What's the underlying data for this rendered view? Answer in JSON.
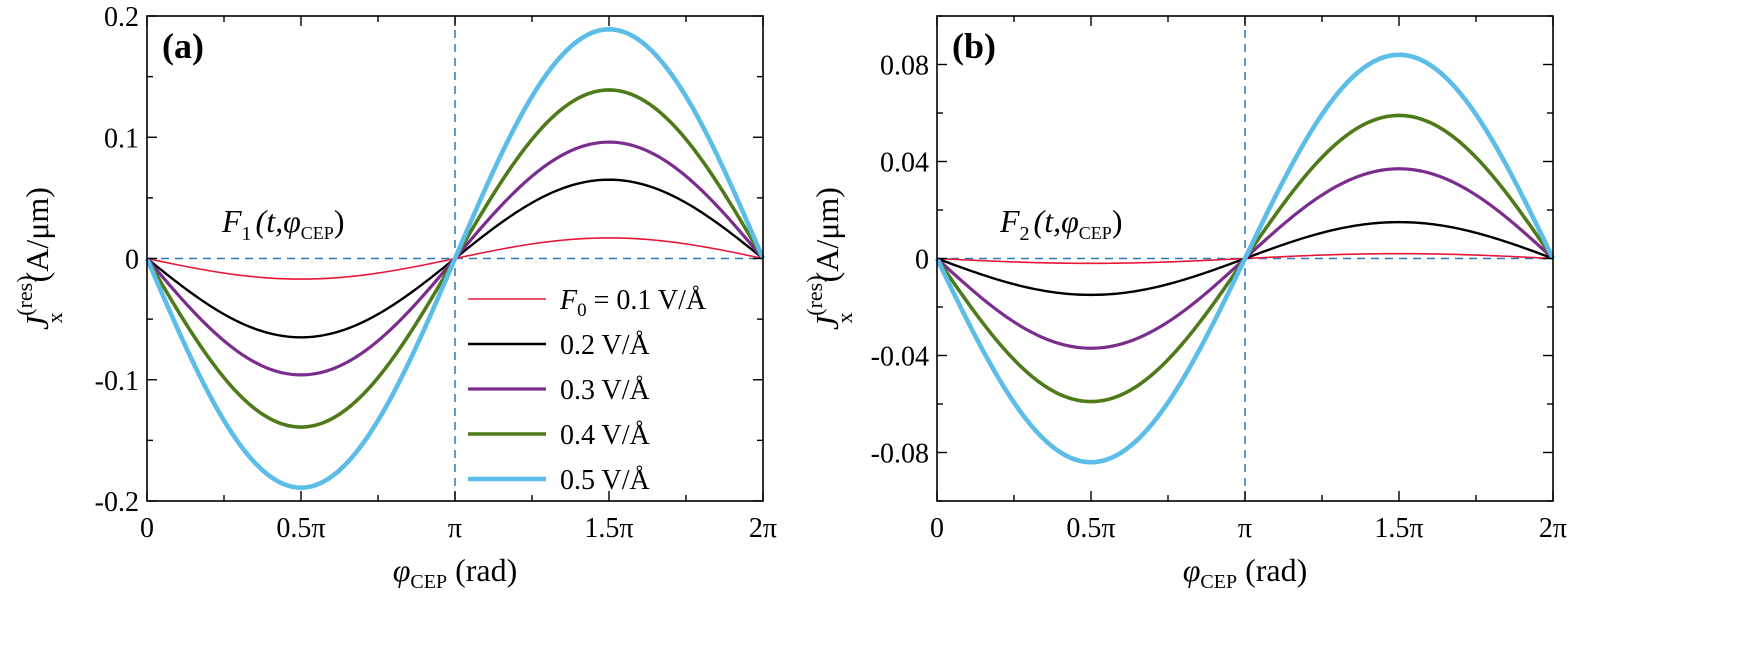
{
  "chart_data": [
    {
      "type": "line",
      "panel": "(a)",
      "panel_label": "(a)",
      "annotation": {
        "main": "F",
        "sub": "1",
        "args_pre": "(t,",
        "phi": "φ",
        "phi_sub": "CEP",
        "args_post": ")"
      },
      "ylabel": {
        "main": "J",
        "sub": "x",
        "sup": "(res)",
        "unit": "(A/μm)"
      },
      "xlabel": {
        "phi": "φ",
        "sub": "CEP",
        "unit": "(rad)"
      },
      "xlim": [
        0,
        2
      ],
      "ylim": [
        -0.2,
        0.2
      ],
      "x_ticks": [
        0,
        0.5,
        1,
        1.5,
        2
      ],
      "x_tick_labels": [
        "0",
        "0.5π",
        "π",
        "1.5π",
        "2π"
      ],
      "y_ticks": [
        -0.2,
        -0.1,
        0,
        0.1,
        0.2
      ],
      "y_tick_labels": [
        "-0.2",
        "-0.1",
        "0",
        "0.1",
        "0.2"
      ],
      "reference_lines": {
        "vertical_x": 1,
        "horizontal_y": 0
      },
      "series": [
        {
          "name": "F0 = 0.1 V/Å",
          "amplitude": 0.017,
          "color": "#e8173a"
        },
        {
          "name": "0.2 V/Å",
          "amplitude": 0.065,
          "color": "#000000"
        },
        {
          "name": "0.3 V/Å",
          "amplitude": 0.096,
          "color": "#7b2d8e"
        },
        {
          "name": "0.4 V/Å",
          "amplitude": 0.139,
          "color": "#4f7a1a"
        },
        {
          "name": "0.5 V/Å",
          "amplitude": 0.189,
          "color": "#5bbde8"
        }
      ],
      "series_model": "y = -amplitude * sin(x * π)",
      "legend": {
        "placement": "bottom-right",
        "entries": [
          {
            "label_main": "F",
            "label_sub": "0",
            "label_rest": " = 0.1 V/Å"
          },
          {
            "label_main": "0.2 V/Å",
            "label_sub": "",
            "label_rest": ""
          },
          {
            "label_main": "0.3 V/Å",
            "label_sub": "",
            "label_rest": ""
          },
          {
            "label_main": "0.4 V/Å",
            "label_sub": "",
            "label_rest": ""
          },
          {
            "label_main": "0.5 V/Å",
            "label_sub": "",
            "label_rest": ""
          }
        ]
      }
    },
    {
      "type": "line",
      "panel": "(b)",
      "panel_label": "(b)",
      "annotation": {
        "main": "F",
        "sub": "2",
        "args_pre": "(t,",
        "phi": "φ",
        "phi_sub": "CEP",
        "args_post": ")"
      },
      "ylabel": {
        "main": "J",
        "sub": "x",
        "sup": "(res)",
        "unit": "(A/μm)"
      },
      "xlabel": {
        "phi": "φ",
        "sub": "CEP",
        "unit": "(rad)"
      },
      "xlim": [
        0,
        2
      ],
      "ylim": [
        -0.1,
        0.1
      ],
      "x_ticks": [
        0,
        0.5,
        1,
        1.5,
        2
      ],
      "x_tick_labels": [
        "0",
        "0.5π",
        "π",
        "1.5π",
        "2π"
      ],
      "y_ticks": [
        -0.08,
        -0.04,
        0,
        0.04,
        0.08
      ],
      "y_tick_labels": [
        "-0.08",
        "-0.04",
        "0",
        "0.04",
        "0.08"
      ],
      "reference_lines": {
        "vertical_x": 1,
        "horizontal_y": 0
      },
      "series": [
        {
          "name": "F0 = 0.1 V/Å",
          "amplitude": 0.002,
          "color": "#e8173a"
        },
        {
          "name": "0.2 V/Å",
          "amplitude": 0.015,
          "color": "#000000"
        },
        {
          "name": "0.3 V/Å",
          "amplitude": 0.037,
          "color": "#7b2d8e"
        },
        {
          "name": "0.4 V/Å",
          "amplitude": 0.059,
          "color": "#4f7a1a"
        },
        {
          "name": "0.5 V/Å",
          "amplitude": 0.084,
          "color": "#5bbde8"
        }
      ],
      "series_model": "y = -amplitude * sin(x * π)"
    }
  ]
}
